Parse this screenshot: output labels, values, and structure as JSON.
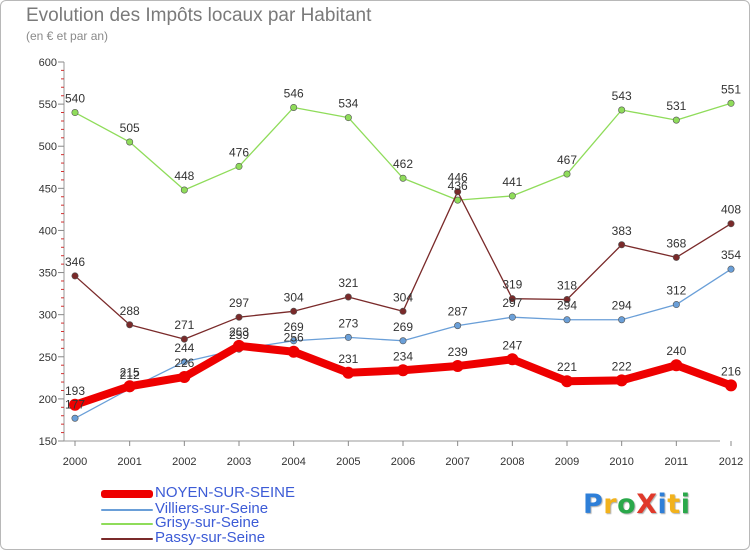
{
  "title": "Evolution des Impôts locaux par Habitant",
  "subtitle": "(en € et par an)",
  "logo": {
    "text": "ProXiti",
    "letters": [
      "P",
      "r",
      "o",
      "X",
      "i",
      "t",
      "i"
    ],
    "colors": [
      "#2e7fd8",
      "#f2b21c",
      "#2aa84a",
      "#e0392b",
      "#2e7fd8",
      "#f2b21c",
      "#2aa84a"
    ]
  },
  "chart_data": {
    "type": "line",
    "title": "Evolution des Impôts locaux par Habitant",
    "subtitle": "(en € et par an)",
    "x": [
      "2000",
      "2001",
      "2002",
      "2003",
      "2004",
      "2005",
      "2006",
      "2007",
      "2008",
      "2009",
      "2010",
      "2011",
      "2012"
    ],
    "ylim": [
      150,
      600
    ],
    "yticks": [
      150,
      200,
      250,
      300,
      350,
      400,
      450,
      500,
      550,
      600
    ],
    "grid": false,
    "legend_position": "bottom-left",
    "series": [
      {
        "name": "NOYEN-SUR-SEINE",
        "color": "#ee0000",
        "values": [
          193,
          215,
          226,
          263,
          256,
          231,
          234,
          239,
          247,
          221,
          222,
          240,
          216
        ]
      },
      {
        "name": "Villiers-sur-Seine",
        "color": "#6a9fd8",
        "values": [
          177,
          212,
          244,
          259,
          269,
          273,
          269,
          287,
          297,
          294,
          294,
          312,
          354
        ]
      },
      {
        "name": "Grisy-sur-Seine",
        "color": "#8fdc5a",
        "values": [
          540,
          505,
          448,
          476,
          546,
          534,
          462,
          436,
          441,
          467,
          543,
          531,
          551
        ]
      },
      {
        "name": "Passy-sur-Seine",
        "color": "#7a2a2a",
        "values": [
          346,
          288,
          271,
          297,
          304,
          321,
          304,
          446,
          319,
          318,
          383,
          368,
          408
        ]
      }
    ],
    "labels": {
      "NOYEN-SUR-SEINE": [
        "193",
        "215",
        "",
        "",
        "",
        "231",
        "234",
        "239",
        "247",
        "221",
        "222",
        "240",
        "216"
      ],
      "Villiers-sur-Seine": [
        "",
        "",
        "244",
        "259",
        "269",
        "273",
        "269",
        "287",
        "297",
        "294",
        "294",
        "312",
        "354"
      ],
      "Grisy-sur-Seine": [
        "540",
        "505",
        "448",
        "476",
        "546",
        "534",
        "462",
        "436",
        "441",
        "467",
        "543",
        "531",
        "551"
      ],
      "Passy-sur-Seine": [
        "346",
        "288",
        "271",
        "297",
        "304",
        "321",
        "304",
        "446",
        "319",
        "318",
        "383",
        "368",
        "408"
      ]
    },
    "extra_labels": [
      {
        "series": "NOYEN-SUR-SEINE",
        "x": "2002",
        "text": "226"
      },
      {
        "series": "NOYEN-SUR-SEINE",
        "x": "2003",
        "text": "263"
      },
      {
        "series": "NOYEN-SUR-SEINE",
        "x": "2004",
        "text": "256"
      },
      {
        "series": "Villiers-sur-Seine",
        "x": "2000",
        "text": "177"
      },
      {
        "series": "Villiers-sur-Seine",
        "x": "2001",
        "text": "212"
      }
    ]
  }
}
